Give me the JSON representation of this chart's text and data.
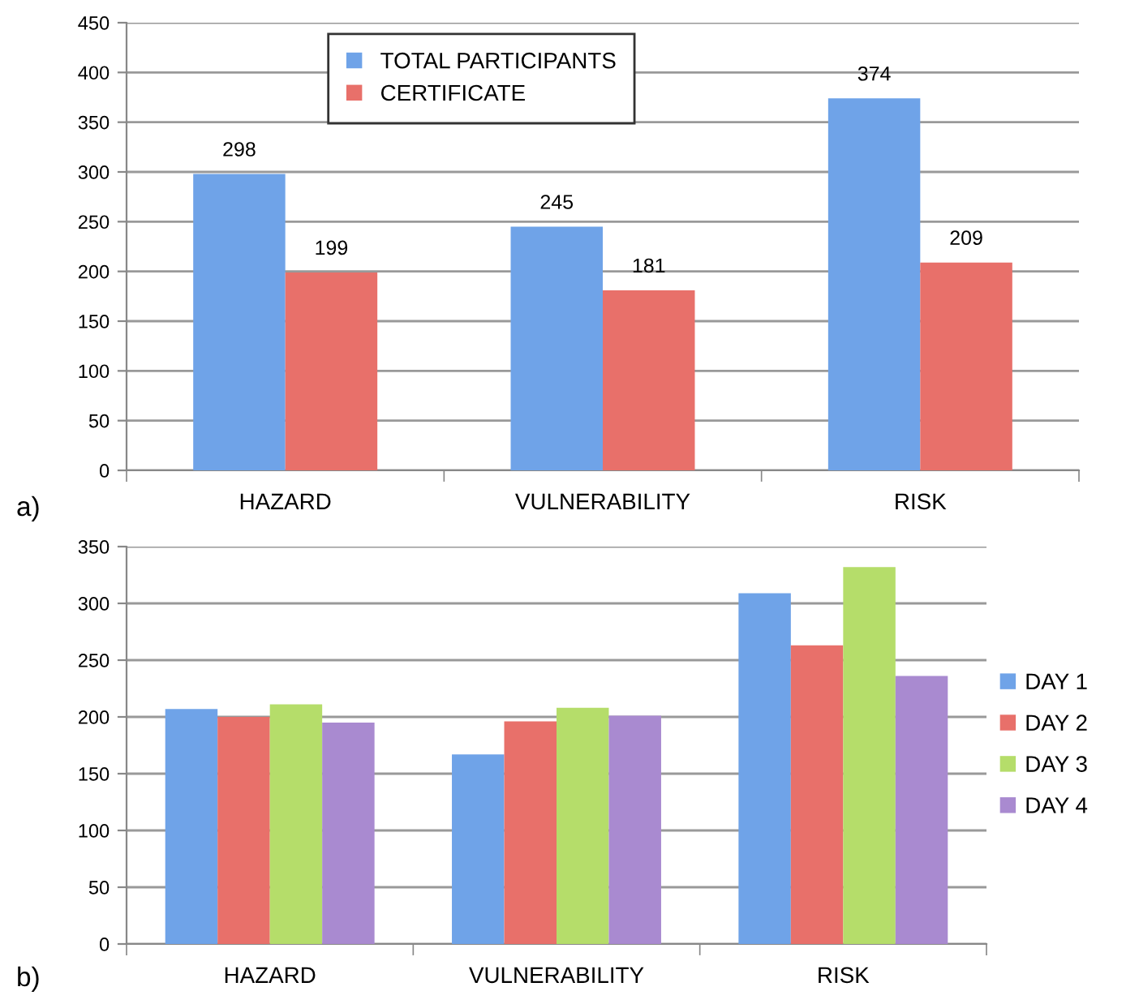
{
  "chart_data": [
    {
      "type": "bar",
      "categories": [
        "HAZARD",
        "VULNERABILITY",
        "RISK"
      ],
      "series": [
        {
          "name": "TOTAL PARTICIPANTS",
          "color": "#6fa3e8",
          "values": [
            298,
            245,
            374
          ]
        },
        {
          "name": "CERTIFICATE",
          "color": "#e8706a",
          "values": [
            199,
            181,
            209
          ]
        }
      ],
      "ylim": [
        0,
        450
      ],
      "yticks": [
        0,
        50,
        100,
        150,
        200,
        250,
        300,
        350,
        400,
        450
      ],
      "grid": "y",
      "legend": "top",
      "data_labels": true,
      "annotations": [
        "a)"
      ]
    },
    {
      "type": "bar",
      "categories": [
        "HAZARD",
        "VULNERABILITY",
        "RISK"
      ],
      "series": [
        {
          "name": "DAY 1",
          "color": "#6fa3e8",
          "values": [
            207,
            167,
            309
          ]
        },
        {
          "name": "DAY 2",
          "color": "#e8706a",
          "values": [
            200,
            196,
            263
          ]
        },
        {
          "name": "DAY 3",
          "color": "#b5dd6a",
          "values": [
            211,
            208,
            332
          ]
        },
        {
          "name": "DAY 4",
          "color": "#a98ad0",
          "values": [
            195,
            201,
            236
          ]
        }
      ],
      "ylim": [
        0,
        350
      ],
      "yticks": [
        0,
        50,
        100,
        150,
        200,
        250,
        300,
        350
      ],
      "grid": "y",
      "legend": "right",
      "annotations": [
        "b)"
      ]
    }
  ]
}
